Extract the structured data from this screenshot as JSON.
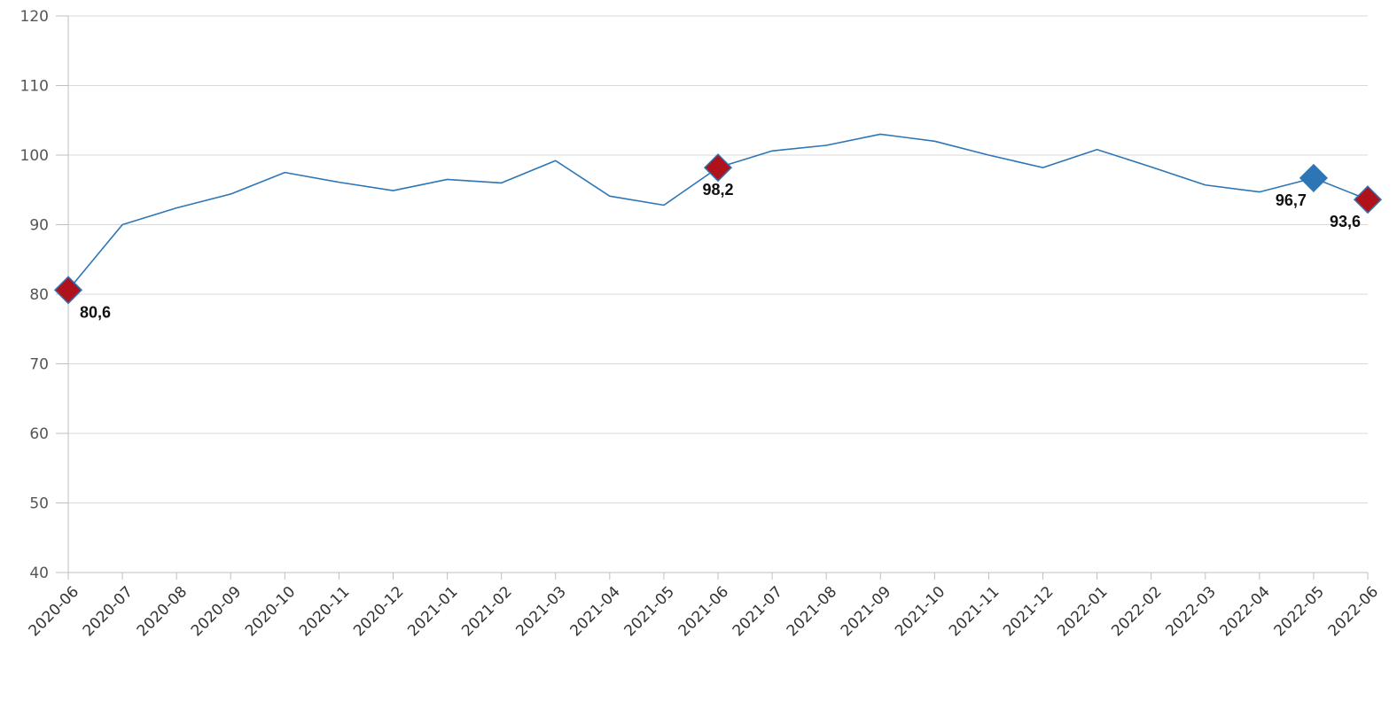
{
  "chart_data": {
    "type": "line",
    "title": "",
    "xlabel": "",
    "ylabel": "",
    "ylim": [
      40,
      120
    ],
    "yticks": [
      40,
      50,
      60,
      70,
      80,
      90,
      100,
      110,
      120
    ],
    "grid": true,
    "categories": [
      "2020-06",
      "2020-07",
      "2020-08",
      "2020-09",
      "2020-10",
      "2020-11",
      "2020-12",
      "2021-01",
      "2021-02",
      "2021-03",
      "2021-04",
      "2021-05",
      "2021-06",
      "2021-07",
      "2021-08",
      "2021-09",
      "2021-10",
      "2021-11",
      "2021-12",
      "2022-01",
      "2022-02",
      "2022-03",
      "2022-04",
      "2022-05",
      "2022-06"
    ],
    "series": [
      {
        "values": [
          80.6,
          90.0,
          92.4,
          94.4,
          97.5,
          96.1,
          94.9,
          96.5,
          96.0,
          99.2,
          94.1,
          92.8,
          98.2,
          100.6,
          101.4,
          103.0,
          102.0,
          100.0,
          98.2,
          100.8,
          98.3,
          95.7,
          94.7,
          96.7,
          93.6
        ],
        "color": "#2e75b6"
      }
    ],
    "markers": [
      {
        "index": 0,
        "label": "80,6",
        "color": "#b0121b",
        "label_pos": "below-right"
      },
      {
        "index": 12,
        "label": "98,2",
        "color": "#b0121b",
        "label_pos": "below"
      },
      {
        "index": 23,
        "label": "96,7",
        "color": "#2e75b6",
        "label_pos": "below-left"
      },
      {
        "index": 24,
        "label": "93,6",
        "color": "#b0121b",
        "label_pos": "below-left"
      }
    ],
    "colors": {
      "line": "#2e75b6",
      "grid": "#d9d9d9",
      "axis": "#bfbfbf",
      "marker_red": "#b0121b",
      "marker_blue": "#2e75b6"
    }
  }
}
